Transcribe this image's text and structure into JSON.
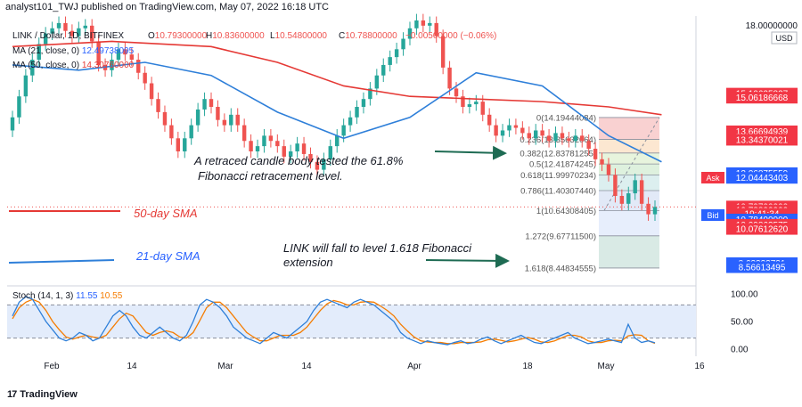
{
  "header": {
    "published_line": "analyst101_TWJ published on TradingView.com, May 07, 2022 16:18 UTC"
  },
  "legend": {
    "symbol_line": "LINK / Dollar, 1D, BITFINEX",
    "ohlc": {
      "O": "10.79300000",
      "H": "10.83600000",
      "L": "10.54800000",
      "C": "10.78800000",
      "change": "−0.00500000 (−0.06%)"
    },
    "ma21_label": "MA (21, close, 0)",
    "ma21_value": "12.49738095",
    "ma50_label": "MA (50, close, 0)",
    "ma50_value": "14.30760000"
  },
  "price_axis": {
    "currency": "USD",
    "top_label": "18.00000000",
    "tags": [
      {
        "text": "15.10625827",
        "price": 15.106,
        "color": "#f23645"
      },
      {
        "text": "15.06186668",
        "price": 14.95,
        "color": "#f23645"
      },
      {
        "text": "13.66694939",
        "price": 13.667,
        "color": "#f23645"
      },
      {
        "text": "13.34370021",
        "price": 13.344,
        "color": "#f23645"
      },
      {
        "text": "12.06875559",
        "price": 12.069,
        "color": "#2962ff"
      },
      {
        "text": "12.04443403",
        "price": 11.89,
        "color": "#2962ff"
      },
      {
        "text": "10.79700000",
        "price": 10.797,
        "color": "#f23645"
      },
      {
        "text": "10.78800000",
        "price": 10.65,
        "color": "#f23645"
      },
      {
        "text": "19:41:34",
        "price": 10.52,
        "color": "#f23645"
      },
      {
        "text": "10.78400000",
        "price": 10.3,
        "color": "#2962ff"
      },
      {
        "text": "10.09863575",
        "price": 10.099,
        "color": "#f23645"
      },
      {
        "text": "10.07612620",
        "price": 9.94,
        "color": "#f23645"
      },
      {
        "text": "8.63332721",
        "price": 8.633,
        "color": "#2962ff"
      },
      {
        "text": "8.56613495",
        "price": 8.48,
        "color": "#2962ff"
      }
    ],
    "ask_label": "Ask",
    "bid_label": "Bid"
  },
  "annotations": {
    "retrace_line1": "A retraced candle body tested the 61.8%",
    "retrace_line2": "Fibonacci retracement level.",
    "sma50_label": "50-day SMA",
    "sma21_label": "21-day SMA",
    "fall_line1": "LINK will fall to level 1.618 Fibonacci",
    "fall_line2": "extension"
  },
  "stoch": {
    "label": "Stoch (14, 1, 3)",
    "k_value": "11.55",
    "d_value": "10.55",
    "axis_labels": [
      "100.00",
      "50.00",
      "0.00"
    ]
  },
  "time_axis": {
    "labels": [
      "Feb",
      "14",
      "Mar",
      "14",
      "Apr",
      "18",
      "May",
      "16"
    ]
  },
  "footer": {
    "brand": "TradingView",
    "logo_glyph": "17"
  },
  "colors": {
    "bull": "#26a69a",
    "bear": "#ef5350",
    "ma21": "#2e7fd9",
    "ma50": "#e53935",
    "stoch_k": "#2e7fd9",
    "stoch_d": "#f57c00",
    "stoch_band": "#e3ecfb",
    "arrow": "#1e6b53",
    "fib_text": "#555555"
  },
  "chart_data": [
    {
      "type": "candlestick",
      "title": "LINK / Dollar, 1D, BITFINEX",
      "ylim": [
        7.8,
        18.0
      ],
      "x_tick_labels": [
        "Feb",
        "14",
        "Mar",
        "14",
        "Apr",
        "18",
        "May",
        "16"
      ],
      "series": [
        {
          "name": "LINK/USD",
          "start_date": "2022-01-26",
          "closes": [
            14.2,
            15.0,
            15.8,
            16.4,
            17.0,
            17.4,
            17.6,
            17.8,
            17.5,
            17.3,
            17.6,
            17.7,
            17.1,
            16.2,
            16.0,
            16.4,
            16.8,
            16.6,
            16.4,
            15.9,
            15.5,
            14.9,
            14.4,
            13.9,
            13.4,
            12.9,
            13.4,
            13.9,
            14.5,
            14.9,
            14.6,
            14.1,
            13.9,
            14.3,
            13.9,
            13.3,
            12.9,
            13.1,
            13.5,
            13.3,
            13.1,
            12.7,
            12.9,
            13.2,
            12.8,
            12.5,
            12.2,
            12.6,
            13.1,
            13.5,
            13.9,
            14.2,
            14.6,
            14.9,
            15.3,
            15.8,
            16.2,
            16.5,
            16.8,
            17.2,
            17.6,
            17.9,
            17.7,
            17.8,
            17.3,
            16.1,
            15.3,
            15.0,
            14.6,
            14.7,
            14.8,
            14.3,
            13.9,
            13.5,
            13.7,
            13.9,
            13.8,
            13.6,
            13.4,
            13.7,
            13.5,
            13.3,
            13.6,
            13.4,
            13.3,
            13.5,
            13.3,
            13.0,
            12.6,
            12.4,
            12.0,
            11.2,
            10.9,
            11.3,
            11.8,
            10.9,
            10.5,
            10.78
          ]
        },
        {
          "name": "MA (21, close, 0)",
          "points": [
            [
              0,
              16.2
            ],
            [
              10,
              16.0
            ],
            [
              20,
              16.3
            ],
            [
              30,
              15.8
            ],
            [
              40,
              14.4
            ],
            [
              50,
              13.4
            ],
            [
              60,
              14.2
            ],
            [
              70,
              15.9
            ],
            [
              80,
              15.4
            ],
            [
              90,
              13.5
            ],
            [
              98,
              12.5
            ]
          ]
        },
        {
          "name": "MA (50, close, 0)",
          "points": [
            [
              0,
              16.9
            ],
            [
              15,
              17.1
            ],
            [
              30,
              16.9
            ],
            [
              40,
              16.3
            ],
            [
              50,
              15.4
            ],
            [
              60,
              15.0
            ],
            [
              70,
              14.9
            ],
            [
              80,
              14.8
            ],
            [
              90,
              14.6
            ],
            [
              98,
              14.3
            ]
          ]
        }
      ],
      "fibonacci": {
        "levels": [
          {
            "ratio": "0",
            "price": 14.19444084,
            "label": "0(14.19444084)"
          },
          {
            "ratio": "0.236",
            "price": 13.35632064,
            "label": "0.236(13.35632064)"
          },
          {
            "ratio": "0.382",
            "price": 12.83781255,
            "label": "0.382(12.83781255)"
          },
          {
            "ratio": "0.5",
            "price": 12.41874245,
            "label": "0.5(12.41874245)"
          },
          {
            "ratio": "0.618",
            "price": 11.99970234,
            "label": "0.618(11.99970234)"
          },
          {
            "ratio": "0.786",
            "price": 11.4030744,
            "label": "0.786(11.40307440)"
          },
          {
            "ratio": "1",
            "price": 10.64308405,
            "label": "1(10.64308405)"
          },
          {
            "ratio": "1.272",
            "price": 9.677115,
            "label": "1.272(9.67711500)"
          },
          {
            "ratio": "1.618",
            "price": 8.44834555,
            "label": "1.618(8.44834555)"
          }
        ]
      }
    },
    {
      "type": "line",
      "title": "Stoch (14, 1, 3)",
      "ylim": [
        0,
        100
      ],
      "series": [
        {
          "name": "%K",
          "values": [
            60,
            85,
            95,
            90,
            70,
            50,
            35,
            20,
            15,
            20,
            30,
            25,
            15,
            20,
            40,
            60,
            70,
            60,
            40,
            25,
            20,
            30,
            40,
            30,
            20,
            15,
            25,
            50,
            80,
            90,
            85,
            75,
            60,
            40,
            30,
            20,
            15,
            10,
            20,
            30,
            25,
            20,
            30,
            40,
            50,
            70,
            85,
            90,
            85,
            80,
            75,
            85,
            90,
            85,
            80,
            70,
            60,
            50,
            30,
            20,
            15,
            10,
            15,
            12,
            10,
            8,
            12,
            15,
            10,
            12,
            18,
            22,
            15,
            10,
            15,
            20,
            25,
            18,
            12,
            10,
            15,
            20,
            25,
            30,
            20,
            15,
            10,
            12,
            15,
            18,
            15,
            12,
            45,
            20,
            12,
            15,
            11.55
          ]
        },
        {
          "name": "%D",
          "values": [
            55,
            75,
            85,
            90,
            85,
            70,
            50,
            35,
            22,
            18,
            22,
            25,
            22,
            20,
            25,
            40,
            55,
            65,
            60,
            45,
            30,
            25,
            30,
            33,
            30,
            22,
            20,
            30,
            52,
            75,
            85,
            85,
            75,
            60,
            45,
            30,
            22,
            15,
            15,
            20,
            25,
            25,
            25,
            30,
            40,
            55,
            70,
            82,
            88,
            85,
            80,
            80,
            85,
            86,
            85,
            78,
            70,
            60,
            45,
            33,
            22,
            15,
            13,
            12,
            12,
            10,
            10,
            12,
            12,
            12,
            13,
            17,
            18,
            16,
            13,
            15,
            18,
            21,
            18,
            13,
            12,
            15,
            20,
            25,
            25,
            22,
            15,
            12,
            12,
            15,
            16,
            15,
            24,
            26,
            25,
            15,
            10.55
          ]
        }
      ]
    }
  ]
}
